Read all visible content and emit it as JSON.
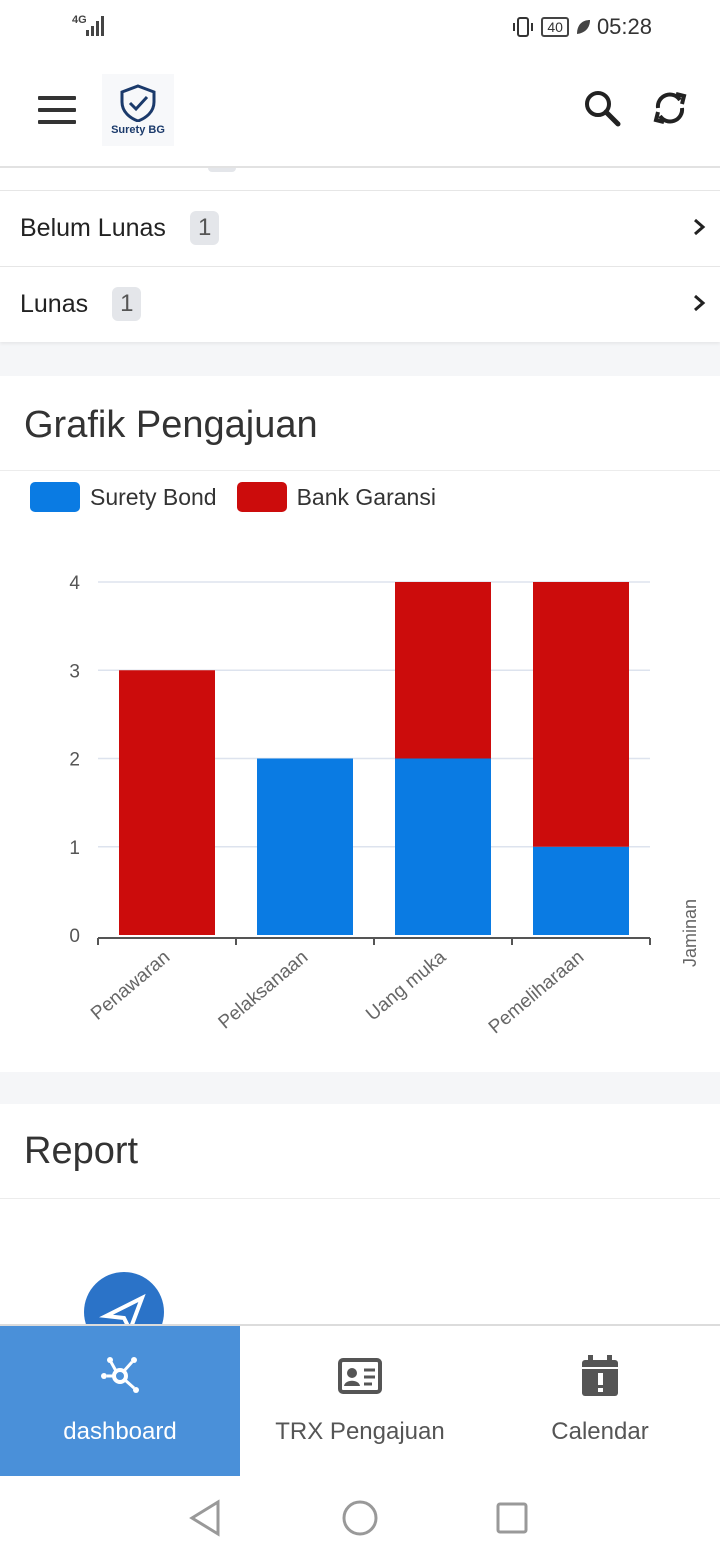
{
  "status_bar": {
    "network": "4G",
    "battery": "40",
    "time": "05:28"
  },
  "app_bar": {
    "logo_text": "Surety BG",
    "icons": [
      "menu-icon",
      "search-icon",
      "refresh-icon"
    ]
  },
  "status_list": {
    "items": [
      {
        "label": "Belum Lunas",
        "count": "1"
      },
      {
        "label": "Lunas",
        "count": "1"
      }
    ]
  },
  "grafik": {
    "title": "Grafik Pengajuan"
  },
  "chart_data": {
    "type": "bar",
    "stacked": true,
    "categories": [
      "Penawaran",
      "Pelaksanaan",
      "Uang muka",
      "Pemeliharaan"
    ],
    "series": [
      {
        "name": "Surety Bond",
        "values": [
          0,
          2,
          2,
          1
        ],
        "color": "#0a7be3"
      },
      {
        "name": "Bank Garansi",
        "values": [
          3,
          0,
          2,
          3
        ],
        "color": "#cc0c0c"
      }
    ],
    "ylim": [
      0,
      4
    ],
    "yticks": [
      "0",
      "1",
      "2",
      "3",
      "4"
    ],
    "xlabel": "Jaminan",
    "legend": "top-left",
    "grid": true
  },
  "report": {
    "title": "Report"
  },
  "bottom_nav": {
    "items": [
      {
        "label": "dashboard",
        "icon": "network-icon",
        "active": true
      },
      {
        "label": "TRX Pengajuan",
        "icon": "id-card-icon",
        "active": false
      },
      {
        "label": "Calendar",
        "icon": "calendar-alert-icon",
        "active": false
      }
    ]
  },
  "colors": {
    "accent": "#4a90d9",
    "surety_bond": "#0a7be3",
    "bank_garansi": "#cc0c0c",
    "fab": "#2b73c8"
  }
}
